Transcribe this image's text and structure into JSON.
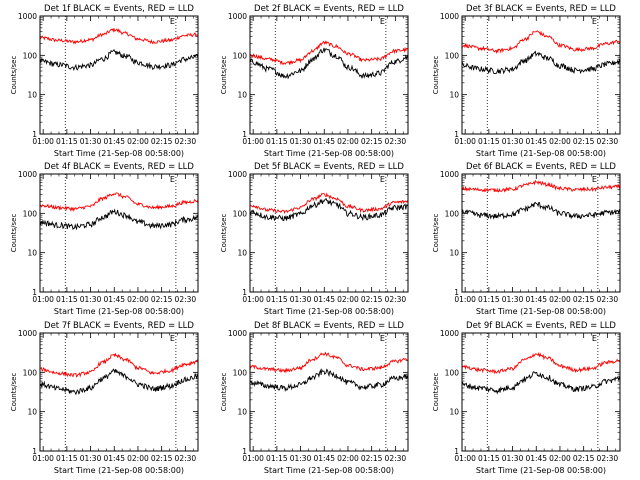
{
  "chart_data": [
    {
      "type": "line",
      "title": "Det 1f BLACK = Events, RED = LLD",
      "xlabel": "Start Time (21-Sep-08 00:58:00)",
      "ylabel": "Counts/sec",
      "yscale": "log",
      "ylim": [
        1,
        1000
      ],
      "xlim": [
        "00:58",
        "02:38"
      ],
      "x_ticks": [
        "01:00",
        "01:15",
        "01:30",
        "01:45",
        "02:00",
        "02:15",
        "02:30"
      ],
      "y_ticks": [
        "1",
        "10",
        "100",
        "1000"
      ],
      "markers": [
        {
          "x": "01:14",
          "label": ""
        },
        {
          "x": "02:24",
          "label": "E"
        }
      ],
      "series": [
        {
          "name": "RED = LLD",
          "color": "#ff0000",
          "x": [
            "00:58",
            "01:10",
            "01:20",
            "01:30",
            "01:38",
            "01:45",
            "01:52",
            "02:00",
            "02:10",
            "02:20",
            "02:30",
            "02:38"
          ],
          "values": [
            280,
            240,
            220,
            250,
            340,
            450,
            360,
            260,
            220,
            240,
            320,
            340
          ]
        },
        {
          "name": "BLACK = Events",
          "color": "#000000",
          "x": [
            "00:58",
            "01:10",
            "01:20",
            "01:30",
            "01:38",
            "01:45",
            "01:52",
            "02:00",
            "02:10",
            "02:20",
            "02:30",
            "02:38"
          ],
          "values": [
            70,
            58,
            50,
            56,
            82,
            120,
            96,
            66,
            52,
            56,
            80,
            92
          ]
        }
      ]
    },
    {
      "type": "line",
      "title": "Det 2f BLACK = Events, RED = LLD",
      "xlabel": "Start Time (21-Sep-08 00:58:00)",
      "ylabel": "Counts/sec",
      "yscale": "log",
      "ylim": [
        1,
        1000
      ],
      "xlim": [
        "00:58",
        "02:38"
      ],
      "x_ticks": [
        "01:00",
        "01:15",
        "01:30",
        "01:45",
        "02:00",
        "02:15",
        "02:30"
      ],
      "y_ticks": [
        "1",
        "10",
        "100",
        "1000"
      ],
      "markers": [
        {
          "x": "01:14",
          "label": ""
        },
        {
          "x": "02:24",
          "label": "E"
        }
      ],
      "series": [
        {
          "name": "RED = LLD",
          "color": "#ff0000",
          "x": [
            "00:58",
            "01:10",
            "01:20",
            "01:30",
            "01:38",
            "01:45",
            "01:52",
            "02:00",
            "02:10",
            "02:20",
            "02:30",
            "02:38"
          ],
          "values": [
            100,
            80,
            65,
            75,
            130,
            210,
            170,
            110,
            75,
            80,
            130,
            140
          ]
        },
        {
          "name": "BLACK = Events",
          "color": "#000000",
          "x": [
            "00:58",
            "01:10",
            "01:20",
            "01:30",
            "01:38",
            "01:45",
            "01:52",
            "02:00",
            "02:10",
            "02:20",
            "02:30",
            "02:38"
          ],
          "values": [
            70,
            45,
            30,
            40,
            80,
            140,
            100,
            50,
            30,
            35,
            70,
            90
          ]
        }
      ]
    },
    {
      "type": "line",
      "title": "Det 3f BLACK = Events, RED = LLD",
      "xlabel": "Start Time (21-Sep-08 00:58:00)",
      "ylabel": "Counts/sec",
      "yscale": "log",
      "ylim": [
        1,
        1000
      ],
      "xlim": [
        "00:58",
        "02:38"
      ],
      "x_ticks": [
        "01:00",
        "01:15",
        "01:30",
        "01:45",
        "02:00",
        "02:15",
        "02:30"
      ],
      "y_ticks": [
        "1",
        "10",
        "100",
        "1000"
      ],
      "markers": [
        {
          "x": "01:14",
          "label": ""
        },
        {
          "x": "02:24",
          "label": "E"
        }
      ],
      "series": [
        {
          "name": "RED = LLD",
          "color": "#ff0000",
          "x": [
            "00:58",
            "01:10",
            "01:20",
            "01:30",
            "01:38",
            "01:45",
            "01:52",
            "02:00",
            "02:10",
            "02:20",
            "02:30",
            "02:38"
          ],
          "values": [
            180,
            150,
            130,
            150,
            260,
            400,
            300,
            180,
            140,
            150,
            200,
            230
          ]
        },
        {
          "name": "BLACK = Events",
          "color": "#000000",
          "x": [
            "00:58",
            "01:10",
            "01:20",
            "01:30",
            "01:38",
            "01:45",
            "01:52",
            "02:00",
            "02:10",
            "02:20",
            "02:30",
            "02:38"
          ],
          "values": [
            55,
            45,
            40,
            45,
            75,
            110,
            85,
            55,
            42,
            45,
            60,
            70
          ]
        }
      ]
    },
    {
      "type": "line",
      "title": "Det 4f BLACK = Events, RED = LLD",
      "xlabel": "Start Time (21-Sep-08 00:58:00)",
      "ylabel": "Counts/sec",
      "yscale": "log",
      "ylim": [
        1,
        1000
      ],
      "xlim": [
        "00:58",
        "02:38"
      ],
      "x_ticks": [
        "01:00",
        "01:15",
        "01:30",
        "01:45",
        "02:00",
        "02:15",
        "02:30"
      ],
      "y_ticks": [
        "1",
        "10",
        "100",
        "1000"
      ],
      "markers": [
        {
          "x": "01:14",
          "label": ""
        },
        {
          "x": "02:24",
          "label": "E"
        }
      ],
      "series": [
        {
          "name": "RED = LLD",
          "color": "#ff0000",
          "x": [
            "00:58",
            "01:10",
            "01:20",
            "01:30",
            "01:38",
            "01:45",
            "01:52",
            "02:00",
            "02:10",
            "02:20",
            "02:30",
            "02:38"
          ],
          "values": [
            160,
            140,
            130,
            150,
            240,
            320,
            260,
            170,
            140,
            150,
            190,
            210
          ]
        },
        {
          "name": "BLACK = Events",
          "color": "#000000",
          "x": [
            "00:58",
            "01:10",
            "01:20",
            "01:30",
            "01:38",
            "01:45",
            "01:52",
            "02:00",
            "02:10",
            "02:20",
            "02:30",
            "02:38"
          ],
          "values": [
            60,
            50,
            45,
            52,
            80,
            110,
            90,
            60,
            48,
            52,
            70,
            76
          ]
        }
      ]
    },
    {
      "type": "line",
      "title": "Det 5f BLACK = Events, RED = LLD",
      "xlabel": "Start Time (21-Sep-08 00:58:00)",
      "ylabel": "Counts/sec",
      "yscale": "log",
      "ylim": [
        1,
        1000
      ],
      "xlim": [
        "00:58",
        "02:38"
      ],
      "x_ticks": [
        "01:00",
        "01:15",
        "01:30",
        "01:45",
        "02:00",
        "02:15",
        "02:30"
      ],
      "y_ticks": [
        "1",
        "10",
        "100",
        "1000"
      ],
      "markers": [
        {
          "x": "01:14",
          "label": ""
        },
        {
          "x": "02:24",
          "label": "E"
        }
      ],
      "series": [
        {
          "name": "RED = LLD",
          "color": "#ff0000",
          "x": [
            "00:58",
            "01:10",
            "01:20",
            "01:30",
            "01:38",
            "01:45",
            "01:52",
            "02:00",
            "02:10",
            "02:20",
            "02:30",
            "02:38"
          ],
          "values": [
            160,
            120,
            110,
            140,
            230,
            300,
            240,
            150,
            120,
            130,
            190,
            200
          ]
        },
        {
          "name": "BLACK = Events",
          "color": "#000000",
          "x": [
            "00:58",
            "01:10",
            "01:20",
            "01:30",
            "01:38",
            "01:45",
            "01:52",
            "02:00",
            "02:10",
            "02:20",
            "02:30",
            "02:38"
          ],
          "values": [
            110,
            80,
            75,
            95,
            160,
            210,
            170,
            100,
            80,
            90,
            140,
            150
          ]
        }
      ]
    },
    {
      "type": "line",
      "title": "Det 6f BLACK = Events, RED = LLD",
      "xlabel": "Start Time (21-Sep-08 00:58:00)",
      "ylabel": "Counts/sec",
      "yscale": "log",
      "ylim": [
        1,
        1000
      ],
      "xlim": [
        "00:58",
        "02:38"
      ],
      "x_ticks": [
        "01:00",
        "01:15",
        "01:30",
        "01:45",
        "02:00",
        "02:15",
        "02:30"
      ],
      "y_ticks": [
        "1",
        "10",
        "100",
        "1000"
      ],
      "markers": [
        {
          "x": "01:14",
          "label": ""
        },
        {
          "x": "02:24",
          "label": "E"
        }
      ],
      "series": [
        {
          "name": "RED = LLD",
          "color": "#ff0000",
          "x": [
            "00:58",
            "01:10",
            "01:20",
            "01:30",
            "01:38",
            "01:45",
            "01:52",
            "02:00",
            "02:10",
            "02:20",
            "02:30",
            "02:38"
          ],
          "values": [
            420,
            400,
            390,
            410,
            520,
            620,
            540,
            430,
            400,
            410,
            460,
            480
          ]
        },
        {
          "name": "BLACK = Events",
          "color": "#000000",
          "x": [
            "00:58",
            "01:10",
            "01:20",
            "01:30",
            "01:38",
            "01:45",
            "01:52",
            "02:00",
            "02:10",
            "02:20",
            "02:30",
            "02:38"
          ],
          "values": [
            110,
            90,
            85,
            95,
            130,
            170,
            140,
            100,
            85,
            90,
            105,
            110
          ]
        }
      ]
    },
    {
      "type": "line",
      "title": "Det 7f BLACK = Events, RED = LLD",
      "xlabel": "Start Time (21-Sep-08 00:58:00)",
      "ylabel": "Counts/sec",
      "yscale": "log",
      "ylim": [
        1,
        1000
      ],
      "xlim": [
        "00:58",
        "02:38"
      ],
      "x_ticks": [
        "01:00",
        "01:15",
        "01:30",
        "01:45",
        "02:00",
        "02:15",
        "02:30"
      ],
      "y_ticks": [
        "1",
        "10",
        "100",
        "1000"
      ],
      "markers": [
        {
          "x": "01:14",
          "label": ""
        },
        {
          "x": "02:24",
          "label": "E"
        }
      ],
      "series": [
        {
          "name": "RED = LLD",
          "color": "#ff0000",
          "x": [
            "00:58",
            "01:10",
            "01:20",
            "01:30",
            "01:38",
            "01:45",
            "01:52",
            "02:00",
            "02:10",
            "02:20",
            "02:30",
            "02:38"
          ],
          "values": [
            120,
            95,
            85,
            100,
            180,
            270,
            210,
            130,
            95,
            110,
            160,
            190
          ]
        },
        {
          "name": "BLACK = Events",
          "color": "#000000",
          "x": [
            "00:58",
            "01:10",
            "01:20",
            "01:30",
            "01:38",
            "01:45",
            "01:52",
            "02:00",
            "02:10",
            "02:20",
            "02:30",
            "02:38"
          ],
          "values": [
            50,
            38,
            32,
            40,
            70,
            105,
            80,
            50,
            38,
            45,
            65,
            80
          ]
        }
      ]
    },
    {
      "type": "line",
      "title": "Det 8f BLACK = Events, RED = LLD",
      "xlabel": "Start Time (21-Sep-08 00:58:00)",
      "ylabel": "Counts/sec",
      "yscale": "log",
      "ylim": [
        1,
        1000
      ],
      "xlim": [
        "00:58",
        "02:38"
      ],
      "x_ticks": [
        "01:00",
        "01:15",
        "01:30",
        "01:45",
        "02:00",
        "02:15",
        "02:30"
      ],
      "y_ticks": [
        "1",
        "10",
        "100",
        "1000"
      ],
      "markers": [
        {
          "x": "01:14",
          "label": ""
        },
        {
          "x": "02:24",
          "label": "E"
        }
      ],
      "series": [
        {
          "name": "RED = LLD",
          "color": "#ff0000",
          "x": [
            "00:58",
            "01:10",
            "01:20",
            "01:30",
            "01:38",
            "01:45",
            "01:52",
            "02:00",
            "02:10",
            "02:20",
            "02:30",
            "02:38"
          ],
          "values": [
            140,
            120,
            110,
            130,
            220,
            300,
            240,
            150,
            120,
            130,
            190,
            220
          ]
        },
        {
          "name": "BLACK = Events",
          "color": "#000000",
          "x": [
            "00:58",
            "01:10",
            "01:20",
            "01:30",
            "01:38",
            "01:45",
            "01:52",
            "02:00",
            "02:10",
            "02:20",
            "02:30",
            "02:38"
          ],
          "values": [
            55,
            45,
            40,
            48,
            75,
            105,
            85,
            55,
            42,
            48,
            70,
            80
          ]
        }
      ]
    },
    {
      "type": "line",
      "title": "Det 9f BLACK = Events, RED = LLD",
      "xlabel": "Start Time (21-Sep-08 00:58:00)",
      "ylabel": "Counts/sec",
      "yscale": "log",
      "ylim": [
        1,
        1000
      ],
      "xlim": [
        "00:58",
        "02:38"
      ],
      "x_ticks": [
        "01:00",
        "01:15",
        "01:30",
        "01:45",
        "02:00",
        "02:15",
        "02:30"
      ],
      "y_ticks": [
        "1",
        "10",
        "100",
        "1000"
      ],
      "markers": [
        {
          "x": "01:14",
          "label": ""
        },
        {
          "x": "02:24",
          "label": "E"
        }
      ],
      "series": [
        {
          "name": "RED = LLD",
          "color": "#ff0000",
          "x": [
            "00:58",
            "01:10",
            "01:20",
            "01:30",
            "01:38",
            "01:45",
            "01:52",
            "02:00",
            "02:10",
            "02:20",
            "02:30",
            "02:38"
          ],
          "values": [
            140,
            115,
            105,
            125,
            210,
            290,
            230,
            145,
            115,
            125,
            180,
            200
          ]
        },
        {
          "name": "BLACK = Events",
          "color": "#000000",
          "x": [
            "00:58",
            "01:10",
            "01:20",
            "01:30",
            "01:38",
            "01:45",
            "01:52",
            "02:00",
            "02:10",
            "02:20",
            "02:30",
            "02:38"
          ],
          "values": [
            48,
            40,
            35,
            42,
            68,
            95,
            75,
            48,
            38,
            42,
            60,
            70
          ]
        }
      ]
    }
  ]
}
